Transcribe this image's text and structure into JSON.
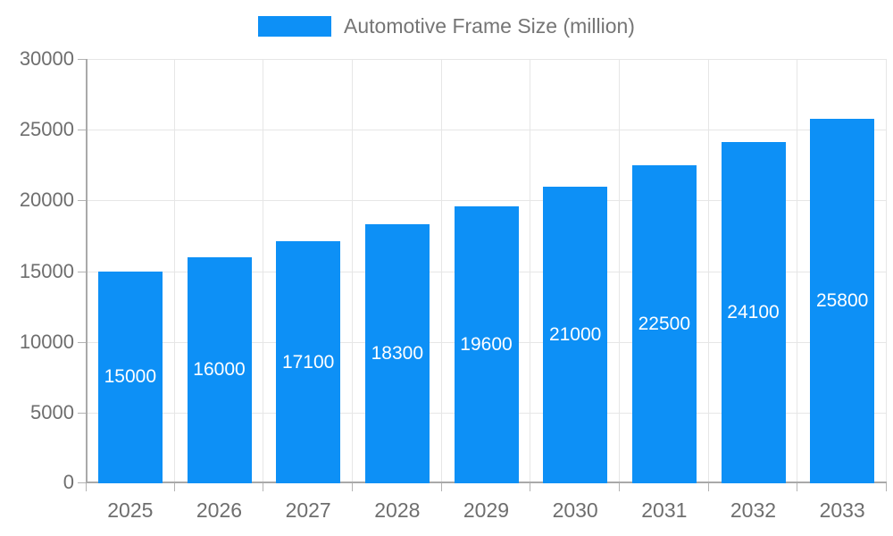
{
  "chart_data": {
    "type": "bar",
    "title": "Automotive Frame Size (million)",
    "categories": [
      "2025",
      "2026",
      "2027",
      "2028",
      "2029",
      "2030",
      "2031",
      "2032",
      "2033"
    ],
    "series": [
      {
        "name": "Automotive Frame Size (million)",
        "values": [
          15000,
          16000,
          17100,
          18300,
          19600,
          21000,
          22500,
          24100,
          25800
        ]
      }
    ],
    "bar_labels": [
      "15000",
      "16000",
      "17100",
      "18300",
      "19600",
      "21000",
      "22500",
      "24100",
      "25800"
    ],
    "xlabel": "",
    "ylabel": "",
    "ylim": [
      0,
      30000
    ],
    "yticks": [
      0,
      5000,
      10000,
      15000,
      20000,
      25000,
      30000
    ],
    "ytick_labels": [
      "0",
      "5000",
      "10000",
      "15000",
      "20000",
      "25000",
      "30000"
    ],
    "grid": true,
    "legend_position": "top",
    "bar_label_position": "center-inside"
  },
  "colors": {
    "bar": "#0d90f6",
    "bar_label": "#ffffff",
    "axis_text": "#6e6e6e",
    "legend_text": "#757575",
    "gridline": "#e6e6e6",
    "axis_line": "#a9a9a9",
    "tick": "#b3b3b3",
    "background": "#ffffff"
  }
}
